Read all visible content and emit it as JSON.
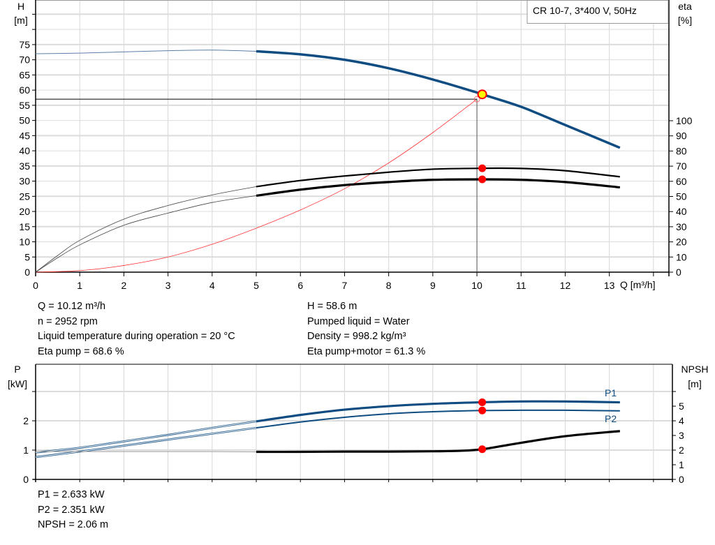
{
  "chart_data": [
    {
      "type": "line",
      "title": "CR 10-7, 3*400 V, 50Hz",
      "xlabel": "Q [m³/h]",
      "ylabel_left": "H",
      "ylabel_left_unit": "[m]",
      "ylabel_right": "eta",
      "ylabel_right_unit": "[%]",
      "xlim": [
        0,
        14.35
      ],
      "ylim_left": [
        0,
        89.7
      ],
      "ylim_right": [
        0,
        100
      ],
      "x_ticks": [
        "0",
        "1",
        "2",
        "3",
        "4",
        "5",
        "6",
        "7",
        "8",
        "9",
        "10",
        "11",
        "12",
        "13"
      ],
      "y_left_ticks": [
        "0",
        "5",
        "10",
        "15",
        "20",
        "25",
        "30",
        "35",
        "40",
        "45",
        "50",
        "55",
        "60",
        "65",
        "70",
        "75"
      ],
      "y_right_ticks": [
        "0",
        "10",
        "20",
        "30",
        "40",
        "50",
        "60",
        "70",
        "80",
        "90",
        "100"
      ],
      "grid": true,
      "operating_range_start_q": 5,
      "series": [
        {
          "key": "H",
          "axis": "left",
          "color": "#0f4c81",
          "x": [
            0,
            1,
            2,
            3,
            4,
            5,
            6,
            7,
            8,
            9,
            10,
            10.12,
            11,
            12,
            13.24
          ],
          "y": [
            72,
            72.2,
            72.6,
            73,
            73.2,
            72.8,
            71.8,
            70,
            67.2,
            63.5,
            59.2,
            58.6,
            54.5,
            48.5,
            41
          ]
        },
        {
          "key": "eta_pump",
          "axis": "right",
          "color": "#000000",
          "x": [
            0,
            0.5,
            1,
            2,
            3,
            4,
            5,
            6,
            7,
            8,
            9,
            10.12,
            11,
            12,
            13.24
          ],
          "y": [
            0,
            11,
            21,
            35,
            44,
            51,
            56.5,
            60.5,
            63.5,
            66,
            68,
            68.6,
            68.5,
            67,
            63
          ]
        },
        {
          "key": "eta_pump_motor",
          "axis": "right",
          "color": "#000000",
          "x": [
            0,
            0.5,
            1,
            2,
            3,
            4,
            5,
            6,
            7,
            8,
            9,
            10.12,
            11,
            12,
            13.24
          ],
          "y": [
            0,
            9.5,
            18,
            31,
            39,
            46,
            50.5,
            54.5,
            57.5,
            59.5,
            61,
            61.3,
            61,
            59.5,
            56
          ]
        },
        {
          "key": "system_curve",
          "axis": "left",
          "color": "#ff3333",
          "x": [
            0,
            1,
            2,
            3,
            4,
            5,
            6,
            7,
            8,
            9,
            10
          ],
          "y": [
            0,
            0.5,
            2.2,
            5,
            9.2,
            14.5,
            20.5,
            27.5,
            36,
            46,
            57
          ]
        }
      ],
      "duty_point": {
        "q": 10.12,
        "h": 58.6,
        "eta_pump": 68.6,
        "eta_pump_motor": 61.3,
        "color": "#ffff00"
      },
      "requested_point": {
        "q": 10,
        "h": 57
      }
    },
    {
      "type": "line",
      "ylabel_left": "P",
      "ylabel_left_unit": "[kW]",
      "ylabel_right": "NPSH",
      "ylabel_right_unit": "[m]",
      "xlim": [
        0,
        14.35
      ],
      "ylim_left": [
        0,
        3.93
      ],
      "ylim_right": [
        0,
        7.86
      ],
      "y_left_ticks": [
        "0",
        "1",
        "2"
      ],
      "y_right_ticks": [
        "0",
        "1",
        "2",
        "3",
        "4",
        "5"
      ],
      "grid": true,
      "series": [
        {
          "key": "P1",
          "name": "P1",
          "axis": "left",
          "color": "#0f4c81",
          "x": [
            0,
            1,
            2,
            3,
            4,
            5,
            6,
            7,
            8,
            9,
            10.12,
            11,
            12,
            13.24
          ],
          "y": [
            0.92,
            1.08,
            1.3,
            1.52,
            1.76,
            1.98,
            2.2,
            2.38,
            2.5,
            2.58,
            2.633,
            2.66,
            2.66,
            2.63
          ]
        },
        {
          "key": "P2",
          "name": "P2",
          "axis": "left",
          "color": "#0f4c81",
          "x": [
            0,
            1,
            2,
            3,
            4,
            5,
            6,
            7,
            8,
            9,
            10.12,
            11,
            12,
            13.24
          ],
          "y": [
            0.76,
            0.95,
            1.15,
            1.36,
            1.56,
            1.76,
            1.96,
            2.12,
            2.24,
            2.31,
            2.351,
            2.36,
            2.36,
            2.34
          ]
        },
        {
          "key": "NPSH",
          "axis": "right",
          "color": "#000000",
          "x": [
            0,
            2,
            4,
            5,
            6,
            7,
            8,
            9,
            9.6,
            10.12,
            11,
            12,
            13.24
          ],
          "y": [
            1.9,
            1.9,
            1.9,
            1.88,
            1.88,
            1.9,
            1.9,
            1.92,
            1.95,
            2.06,
            2.5,
            2.95,
            3.3
          ]
        }
      ],
      "duty_point": {
        "q": 10.12,
        "p1": 2.633,
        "p2": 2.351,
        "npsh": 2.06
      }
    }
  ],
  "results": {
    "q": "Q = 10.12 m³/h",
    "n": "n = 2952 rpm",
    "temp": "Liquid temperature during operation = 20 °C",
    "eta_pump": "Eta pump = 68.6 %",
    "h": "H = 58.6 m",
    "liquid": "Pumped liquid = Water",
    "density": "Density = 998.2 kg/m³",
    "eta_total": "Eta pump+motor = 61.3 %",
    "p1": "P1 = 2.633 kW",
    "p2": "P2 = 2.351 kW",
    "npsh": "NPSH = 2.06 m"
  }
}
